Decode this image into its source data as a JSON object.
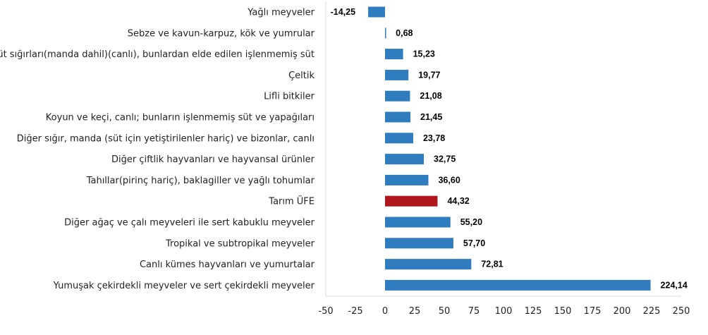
{
  "chart_data": {
    "type": "bar",
    "orientation": "horizontal",
    "title": "",
    "xlabel": "",
    "ylabel": "",
    "xlim": [
      -50,
      250
    ],
    "xticks": [
      -50,
      -25,
      0,
      25,
      50,
      75,
      100,
      125,
      150,
      175,
      200,
      225,
      250
    ],
    "grid": false,
    "categories": [
      "Yağlı meyveler",
      "Sebze ve kavun-karpuz, kök ve yumrular",
      "Süt sığırları(manda dahil)(canlı), bunlardan elde edilen işlenmemiş süt",
      "Çeltik",
      "Lifli bitkiler",
      "Koyun ve keçi, canlı; bunların işlenmemiş süt ve yapağıları",
      "Diğer sığır, manda (süt için yetiştirilenler hariç) ve bizonlar, canlı",
      "Diğer çiftlik hayvanları ve hayvansal ürünler",
      "Tahıllar(pirinç hariç), baklagiller ve yağlı tohumlar",
      "Tarım ÜFE",
      "Diğer ağaç ve çalı meyveleri ile sert kabuklu meyveler",
      "Tropikal ve subtropikal meyveler",
      "Canlı kümes hayvanları ve yumurtalar",
      "Yumuşak çekirdekli meyveler ve sert çekirdekli meyveler"
    ],
    "values": [
      -14.25,
      0.68,
      15.23,
      19.77,
      21.08,
      21.45,
      23.78,
      32.75,
      36.6,
      44.32,
      55.2,
      57.7,
      72.81,
      224.14
    ],
    "value_labels": [
      "-14,25",
      "0,68",
      "15,23",
      "19,77",
      "21,08",
      "21,45",
      "23,78",
      "32,75",
      "36,60",
      "44,32",
      "55,20",
      "57,70",
      "72,81",
      "224,14"
    ],
    "highlight_category": "Tarım ÜFE",
    "colors": {
      "default": "#2f7dbf",
      "highlight": "#b0161e"
    }
  }
}
